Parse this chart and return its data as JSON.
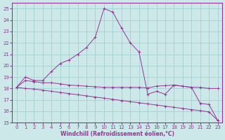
{
  "xlabel": "Windchill (Refroidissement éolien,°C)",
  "bg_color": "#cce8e8",
  "grid_color": "#99cccc",
  "line_color": "#993399",
  "spine_color": "#993399",
  "xlim": [
    -0.5,
    23.5
  ],
  "ylim": [
    15,
    25.5
  ],
  "yticks": [
    15,
    16,
    17,
    18,
    19,
    20,
    21,
    22,
    23,
    24,
    25
  ],
  "xticks": [
    0,
    1,
    2,
    3,
    4,
    5,
    6,
    7,
    8,
    9,
    10,
    11,
    12,
    13,
    14,
    15,
    16,
    17,
    18,
    19,
    20,
    21,
    22,
    23
  ],
  "curve1_x": [
    0,
    1,
    2,
    3,
    4,
    5,
    6,
    7,
    8,
    9,
    10,
    11,
    12,
    13,
    14,
    15,
    16,
    17,
    18,
    19,
    20,
    21,
    22,
    23
  ],
  "curve1_y": [
    18.1,
    18.7,
    18.6,
    18.5,
    18.5,
    18.4,
    18.3,
    18.25,
    18.2,
    18.15,
    18.1,
    18.1,
    18.1,
    18.1,
    18.1,
    18.05,
    18.2,
    18.25,
    18.3,
    18.2,
    18.1,
    18.1,
    18.0,
    18.0
  ],
  "curve2_x": [
    0,
    1,
    2,
    3,
    4,
    5,
    6,
    7,
    8,
    9,
    10,
    11,
    12,
    13,
    14,
    15,
    16,
    17,
    18,
    19,
    20,
    21,
    22,
    23
  ],
  "curve2_y": [
    18.1,
    18.0,
    17.95,
    17.85,
    17.75,
    17.65,
    17.55,
    17.45,
    17.35,
    17.25,
    17.15,
    17.05,
    16.95,
    16.85,
    16.75,
    16.65,
    16.55,
    16.45,
    16.35,
    16.25,
    16.15,
    16.05,
    15.95,
    15.2
  ],
  "curve3_x": [
    0,
    1,
    2,
    3,
    4,
    5,
    6,
    7,
    8,
    9,
    10,
    11,
    12,
    13,
    14,
    15,
    16,
    17,
    18,
    19,
    20,
    21,
    22,
    23
  ],
  "curve3_y": [
    18.1,
    19.0,
    18.7,
    18.7,
    19.5,
    20.2,
    20.5,
    21.0,
    21.6,
    22.5,
    25.0,
    24.7,
    23.3,
    22.0,
    21.2,
    17.5,
    17.75,
    17.5,
    18.3,
    18.2,
    18.1,
    16.7,
    16.6,
    15.2
  ],
  "marker_size": 2.5,
  "lw": 0.7,
  "tick_fontsize": 5,
  "xlabel_fontsize": 5.5
}
